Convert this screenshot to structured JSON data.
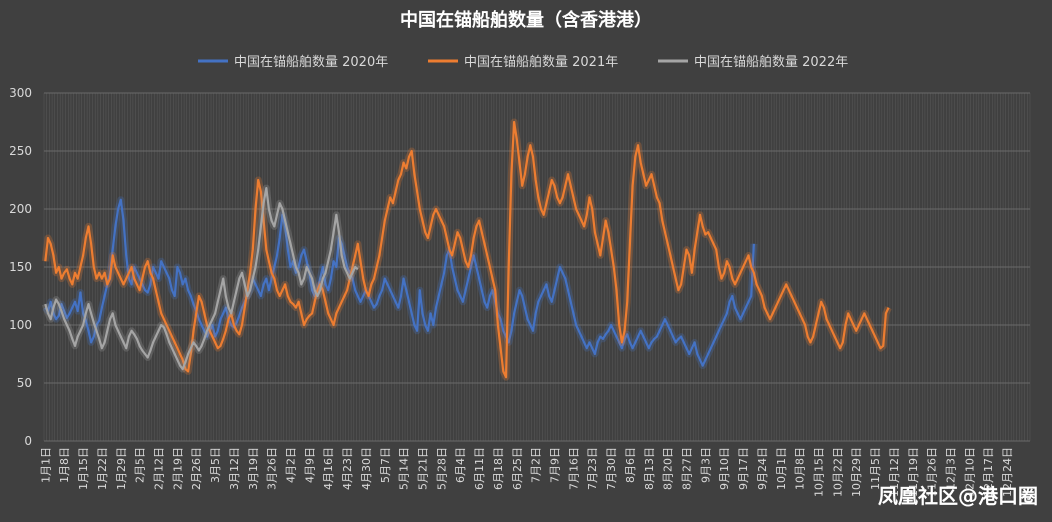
{
  "chart_data": {
    "type": "line",
    "title": "中国在锚船舶数量（含香港港）",
    "ylim": [
      0,
      300
    ],
    "yticks": [
      0,
      50,
      100,
      150,
      200,
      250,
      300
    ],
    "legend_position": "top",
    "grid": true,
    "x_ticks": [
      "1月1日",
      "1月8日",
      "1月15日",
      "1月22日",
      "1月29日",
      "2月5日",
      "2月12日",
      "2月19日",
      "2月26日",
      "3月5日",
      "3月12日",
      "3月19日",
      "3月26日",
      "4月2日",
      "4月9日",
      "4月16日",
      "4月23日",
      "4月30日",
      "5月7日",
      "5月14日",
      "5月21日",
      "5月28日",
      "6月4日",
      "6月11日",
      "6月18日",
      "6月25日",
      "7月2日",
      "7月9日",
      "7月16日",
      "7月23日",
      "7月30日",
      "8月6日",
      "8月13日",
      "8月20日",
      "8月27日",
      "9月3日",
      "9月10日",
      "9月17日",
      "9月24日",
      "10月1日",
      "10月8日",
      "10月15日",
      "10月22日",
      "10月29日",
      "11月5日",
      "11月12日",
      "11月19日",
      "11月26日",
      "12月3日",
      "12月10日",
      "12月17日",
      "12月24日"
    ],
    "series": [
      {
        "name": "中国在锚船舶数量 2020年",
        "color": "#4472C4",
        "values": [
          115,
          112,
          120,
          110,
          105,
          108,
          118,
          112,
          106,
          110,
          115,
          120,
          112,
          128,
          110,
          104,
          95,
          85,
          90,
          100,
          104,
          115,
          125,
          135,
          145,
          165,
          185,
          200,
          208,
          190,
          160,
          140,
          135,
          150,
          145,
          140,
          135,
          130,
          128,
          135,
          150,
          145,
          140,
          155,
          150,
          145,
          140,
          130,
          125,
          150,
          145,
          135,
          140,
          130,
          125,
          118,
          112,
          105,
          100,
          95,
          90,
          95,
          100,
          90,
          95,
          105,
          110,
          115,
          105,
          100,
          98,
          102,
          108,
          115,
          120,
          125,
          130,
          140,
          135,
          130,
          125,
          135,
          140,
          130,
          140,
          150,
          160,
          175,
          195,
          185,
          165,
          150,
          155,
          145,
          150,
          160,
          165,
          155,
          145,
          130,
          125,
          130,
          140,
          150,
          135,
          130,
          140,
          155,
          150,
          175,
          170,
          160,
          150,
          145,
          140,
          130,
          125,
          120,
          125,
          130,
          125,
          120,
          115,
          118,
          125,
          130,
          140,
          135,
          130,
          125,
          120,
          115,
          125,
          140,
          130,
          120,
          110,
          100,
          95,
          130,
          110,
          100,
          95,
          110,
          100,
          115,
          125,
          135,
          145,
          160,
          165,
          150,
          140,
          130,
          125,
          120,
          130,
          140,
          150,
          160,
          150,
          140,
          130,
          120,
          115,
          125,
          130,
          120,
          110,
          105,
          95,
          90,
          85,
          95,
          110,
          120,
          130,
          125,
          115,
          105,
          100,
          95,
          110,
          120,
          125,
          130,
          135,
          125,
          120,
          130,
          140,
          150,
          145,
          140,
          130,
          120,
          110,
          100,
          95,
          90,
          85,
          80,
          85,
          80,
          75,
          85,
          90,
          88,
          92,
          95,
          100,
          95,
          90,
          85,
          80,
          88,
          92,
          85,
          80,
          85,
          90,
          95,
          90,
          85,
          80,
          85,
          88,
          90,
          95,
          100,
          105,
          100,
          95,
          90,
          85,
          88,
          90,
          85,
          80,
          75,
          80,
          85,
          75,
          70,
          65,
          70,
          75,
          80,
          85,
          90,
          95,
          100,
          105,
          110,
          120,
          125,
          115,
          110,
          105,
          110,
          115,
          120,
          125,
          170
        ]
      },
      {
        "name": "中国在锚船舶数量 2021年",
        "color": "#ED7D31",
        "values": [
          155,
          175,
          170,
          160,
          145,
          150,
          140,
          145,
          148,
          140,
          135,
          145,
          140,
          150,
          160,
          175,
          185,
          170,
          150,
          140,
          145,
          140,
          145,
          135,
          140,
          160,
          150,
          145,
          140,
          135,
          140,
          145,
          150,
          140,
          135,
          130,
          140,
          150,
          155,
          145,
          140,
          130,
          120,
          110,
          105,
          100,
          95,
          90,
          85,
          80,
          75,
          70,
          62,
          60,
          75,
          95,
          110,
          125,
          120,
          110,
          100,
          95,
          90,
          85,
          80,
          82,
          88,
          95,
          105,
          110,
          100,
          95,
          92,
          100,
          115,
          130,
          145,
          165,
          200,
          225,
          215,
          190,
          165,
          155,
          145,
          140,
          130,
          125,
          130,
          135,
          125,
          120,
          118,
          115,
          120,
          110,
          100,
          105,
          108,
          110,
          120,
          130,
          135,
          130,
          120,
          110,
          105,
          100,
          110,
          115,
          120,
          125,
          130,
          140,
          150,
          160,
          170,
          155,
          140,
          130,
          125,
          135,
          140,
          150,
          160,
          175,
          190,
          200,
          210,
          205,
          215,
          225,
          230,
          240,
          235,
          245,
          250,
          230,
          215,
          200,
          190,
          180,
          175,
          185,
          195,
          200,
          195,
          190,
          185,
          175,
          165,
          160,
          170,
          180,
          175,
          165,
          155,
          150,
          160,
          175,
          185,
          190,
          180,
          170,
          160,
          150,
          140,
          130,
          100,
          80,
          60,
          55,
          150,
          230,
          275,
          260,
          240,
          220,
          230,
          245,
          255,
          245,
          225,
          210,
          200,
          195,
          205,
          215,
          225,
          220,
          210,
          205,
          210,
          220,
          230,
          220,
          210,
          200,
          195,
          190,
          185,
          195,
          210,
          200,
          180,
          170,
          160,
          175,
          190,
          180,
          165,
          150,
          130,
          100,
          85,
          95,
          120,
          170,
          220,
          245,
          255,
          240,
          230,
          220,
          225,
          230,
          220,
          210,
          205,
          190,
          180,
          170,
          160,
          150,
          140,
          130,
          135,
          150,
          165,
          160,
          145,
          165,
          180,
          195,
          185,
          178,
          180,
          175,
          170,
          165,
          150,
          140,
          145,
          155,
          150,
          140,
          135,
          140,
          145,
          150,
          155,
          160,
          150,
          145,
          135,
          130,
          125,
          115,
          110,
          105,
          110,
          115,
          120,
          125,
          130,
          135,
          130,
          125,
          120,
          115,
          110,
          105,
          100,
          90,
          85,
          90,
          100,
          110,
          120,
          115,
          105,
          100,
          95,
          90,
          85,
          80,
          85,
          100,
          110,
          105,
          100,
          95,
          100,
          105,
          110,
          105,
          100,
          95,
          90,
          85,
          80,
          82,
          110,
          115
        ]
      },
      {
        "name": "中国在锚船舶数量 2022年",
        "color": "#A5A5A5",
        "values": [
          118,
          110,
          105,
          115,
          122,
          118,
          112,
          105,
          100,
          95,
          88,
          82,
          90,
          95,
          100,
          110,
          118,
          110,
          102,
          95,
          88,
          80,
          85,
          95,
          105,
          110,
          100,
          95,
          90,
          85,
          80,
          90,
          95,
          92,
          88,
          82,
          78,
          75,
          72,
          78,
          85,
          90,
          95,
          100,
          98,
          92,
          85,
          80,
          75,
          70,
          65,
          62,
          68,
          75,
          80,
          85,
          82,
          78,
          82,
          88,
          95,
          100,
          105,
          110,
          120,
          130,
          140,
          125,
          115,
          110,
          120,
          130,
          140,
          145,
          135,
          125,
          130,
          140,
          150,
          165,
          185,
          205,
          218,
          200,
          190,
          185,
          195,
          205,
          200,
          190,
          180,
          170,
          160,
          150,
          145,
          135,
          140,
          150,
          145,
          140,
          130,
          125,
          130,
          140,
          145,
          155,
          165,
          180,
          195,
          180,
          160,
          150,
          145,
          140,
          145,
          150,
          148
        ]
      }
    ]
  },
  "watermark": "凤凰社区@港口圈"
}
